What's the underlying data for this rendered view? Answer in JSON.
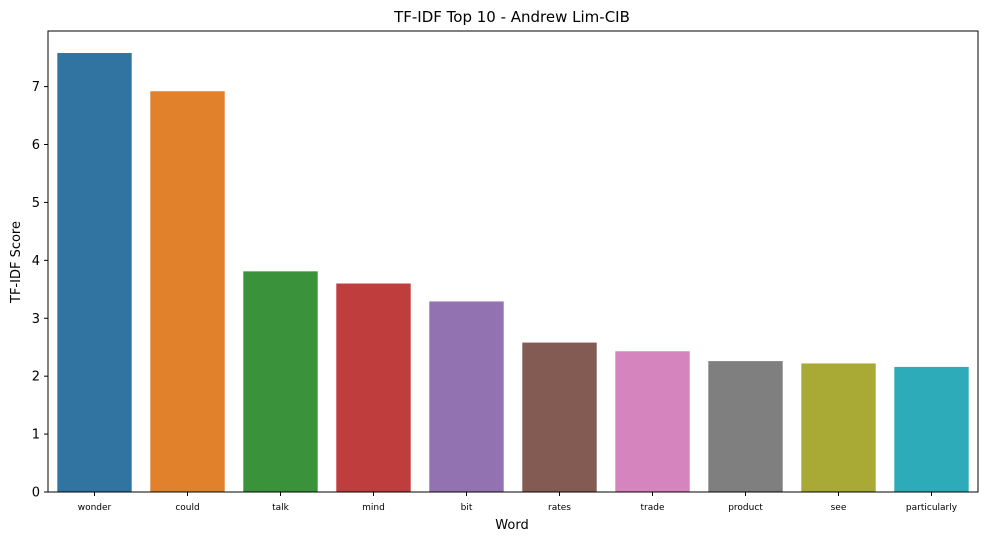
{
  "chart_data": {
    "type": "bar",
    "title": "TF-IDF Top 10 - Andrew Lim-CIB",
    "xlabel": "Word",
    "ylabel": "TF-IDF Score",
    "categories": [
      "wonder",
      "could",
      "talk",
      "mind",
      "bit",
      "rates",
      "trade",
      "product",
      "see",
      "particularly"
    ],
    "values": [
      7.58,
      6.92,
      3.81,
      3.6,
      3.29,
      2.58,
      2.43,
      2.26,
      2.22,
      2.16
    ],
    "colors": [
      "#3274a1",
      "#e1812c",
      "#3a923a",
      "#c03d3e",
      "#9372b2",
      "#845b53",
      "#d684bd",
      "#7f7f7f",
      "#a9aa35",
      "#2eabb8"
    ],
    "yticks": [
      "0",
      "1",
      "2",
      "3",
      "4",
      "5",
      "6",
      "7"
    ],
    "ylim": [
      0,
      7.96
    ],
    "grid": false,
    "legend": "none"
  }
}
